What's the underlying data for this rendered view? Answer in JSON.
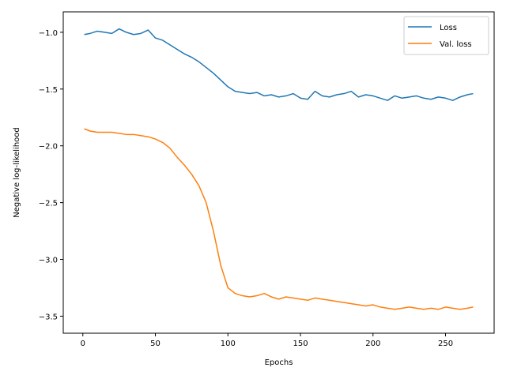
{
  "chart_data": {
    "type": "line",
    "xlabel": "Epochs",
    "ylabel": "Negative log-likelihood",
    "xlim": [
      -13.5,
      283.5
    ],
    "ylim": [
      -3.65,
      -0.82
    ],
    "xticks": [
      0,
      50,
      100,
      150,
      200,
      250
    ],
    "yticks": [
      -1.0,
      -1.5,
      -2.0,
      -2.5,
      -3.0,
      -3.5
    ],
    "ytick_labels": [
      "−1.0",
      "−1.5",
      "−2.0",
      "−2.5",
      "−3.0",
      "−3.5"
    ],
    "grid": false,
    "legend_position": "top-right",
    "series": [
      {
        "name": "Loss",
        "color": "#1f77b4",
        "points": [
          [
            1,
            -1.02
          ],
          [
            5,
            -1.01
          ],
          [
            10,
            -0.99
          ],
          [
            15,
            -1.0
          ],
          [
            20,
            -1.01
          ],
          [
            25,
            -0.97
          ],
          [
            30,
            -1.0
          ],
          [
            35,
            -1.02
          ],
          [
            40,
            -1.01
          ],
          [
            45,
            -0.98
          ],
          [
            50,
            -1.05
          ],
          [
            55,
            -1.07
          ],
          [
            60,
            -1.11
          ],
          [
            65,
            -1.15
          ],
          [
            70,
            -1.19
          ],
          [
            75,
            -1.22
          ],
          [
            80,
            -1.26
          ],
          [
            85,
            -1.31
          ],
          [
            90,
            -1.36
          ],
          [
            95,
            -1.42
          ],
          [
            100,
            -1.48
          ],
          [
            105,
            -1.52
          ],
          [
            110,
            -1.53
          ],
          [
            115,
            -1.54
          ],
          [
            120,
            -1.53
          ],
          [
            125,
            -1.56
          ],
          [
            130,
            -1.55
          ],
          [
            135,
            -1.57
          ],
          [
            140,
            -1.56
          ],
          [
            145,
            -1.54
          ],
          [
            150,
            -1.58
          ],
          [
            155,
            -1.59
          ],
          [
            160,
            -1.52
          ],
          [
            165,
            -1.56
          ],
          [
            170,
            -1.57
          ],
          [
            175,
            -1.55
          ],
          [
            180,
            -1.54
          ],
          [
            185,
            -1.52
          ],
          [
            190,
            -1.57
          ],
          [
            195,
            -1.55
          ],
          [
            200,
            -1.56
          ],
          [
            205,
            -1.58
          ],
          [
            210,
            -1.6
          ],
          [
            215,
            -1.56
          ],
          [
            220,
            -1.58
          ],
          [
            225,
            -1.57
          ],
          [
            230,
            -1.56
          ],
          [
            235,
            -1.58
          ],
          [
            240,
            -1.59
          ],
          [
            245,
            -1.57
          ],
          [
            250,
            -1.58
          ],
          [
            255,
            -1.6
          ],
          [
            260,
            -1.57
          ],
          [
            265,
            -1.55
          ],
          [
            269,
            -1.54
          ]
        ]
      },
      {
        "name": "Val. loss",
        "color": "#ff7f0e",
        "points": [
          [
            1,
            -1.85
          ],
          [
            5,
            -1.87
          ],
          [
            10,
            -1.88
          ],
          [
            15,
            -1.88
          ],
          [
            20,
            -1.88
          ],
          [
            25,
            -1.89
          ],
          [
            30,
            -1.9
          ],
          [
            35,
            -1.9
          ],
          [
            40,
            -1.91
          ],
          [
            45,
            -1.92
          ],
          [
            50,
            -1.94
          ],
          [
            55,
            -1.97
          ],
          [
            60,
            -2.02
          ],
          [
            65,
            -2.1
          ],
          [
            70,
            -2.17
          ],
          [
            75,
            -2.25
          ],
          [
            80,
            -2.35
          ],
          [
            85,
            -2.5
          ],
          [
            90,
            -2.75
          ],
          [
            95,
            -3.05
          ],
          [
            100,
            -3.25
          ],
          [
            105,
            -3.3
          ],
          [
            110,
            -3.32
          ],
          [
            115,
            -3.33
          ],
          [
            120,
            -3.32
          ],
          [
            125,
            -3.3
          ],
          [
            130,
            -3.33
          ],
          [
            135,
            -3.35
          ],
          [
            140,
            -3.33
          ],
          [
            145,
            -3.34
          ],
          [
            150,
            -3.35
          ],
          [
            155,
            -3.36
          ],
          [
            160,
            -3.34
          ],
          [
            165,
            -3.35
          ],
          [
            170,
            -3.36
          ],
          [
            175,
            -3.37
          ],
          [
            180,
            -3.38
          ],
          [
            185,
            -3.39
          ],
          [
            190,
            -3.4
          ],
          [
            195,
            -3.41
          ],
          [
            200,
            -3.4
          ],
          [
            205,
            -3.42
          ],
          [
            210,
            -3.43
          ],
          [
            215,
            -3.44
          ],
          [
            220,
            -3.43
          ],
          [
            225,
            -3.42
          ],
          [
            230,
            -3.43
          ],
          [
            235,
            -3.44
          ],
          [
            240,
            -3.43
          ],
          [
            245,
            -3.44
          ],
          [
            250,
            -3.42
          ],
          [
            255,
            -3.43
          ],
          [
            260,
            -3.44
          ],
          [
            265,
            -3.43
          ],
          [
            269,
            -3.42
          ]
        ]
      }
    ]
  }
}
